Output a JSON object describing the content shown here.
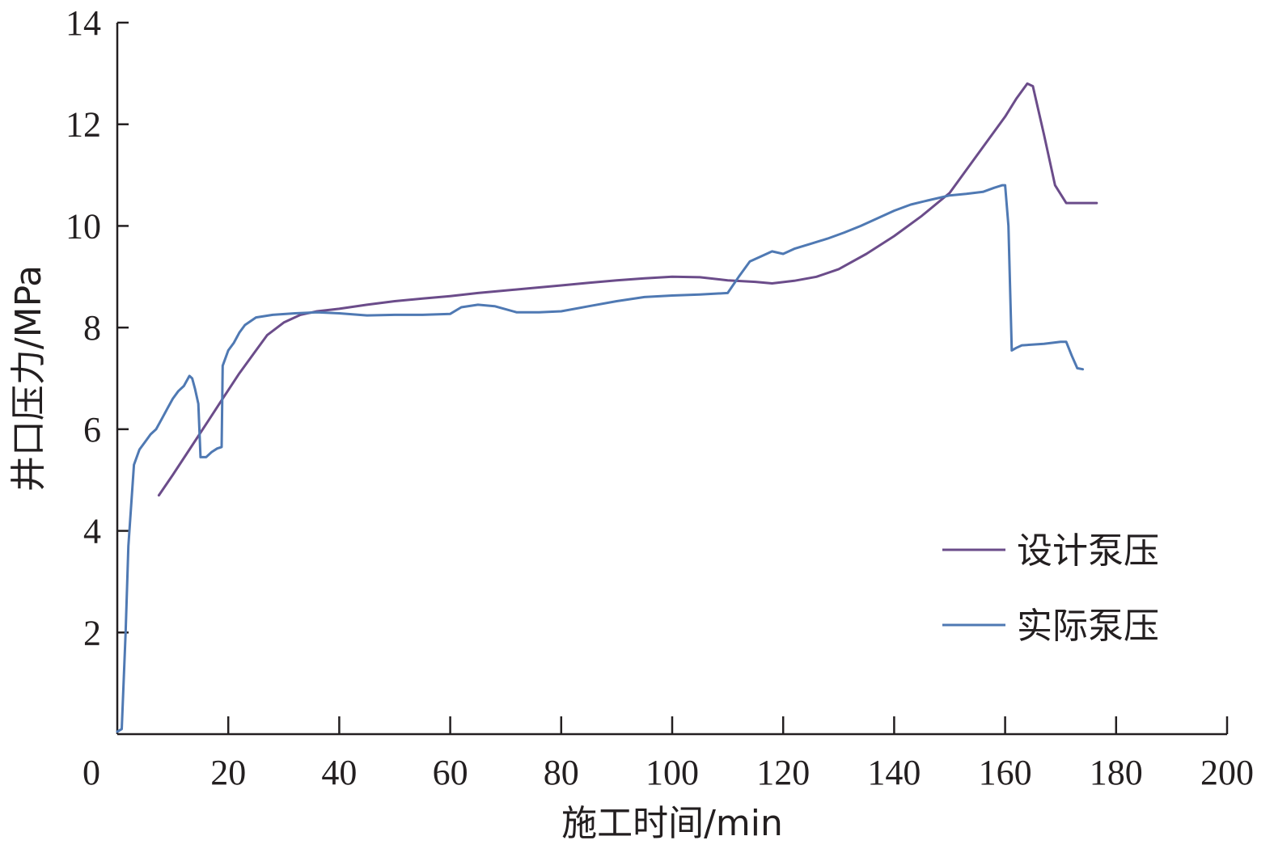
{
  "chart_data": {
    "type": "line",
    "title": "",
    "xlabel": "施工时间/min",
    "ylabel": "井口压力/MPa",
    "xlim": [
      0,
      200
    ],
    "ylim": [
      0,
      14
    ],
    "x_ticks": [
      0,
      20,
      40,
      60,
      80,
      100,
      120,
      140,
      160,
      180,
      200
    ],
    "y_ticks": [
      2,
      4,
      6,
      8,
      10,
      12,
      14
    ],
    "x_tick_labels": [
      "0",
      "20",
      "40",
      "60",
      "80",
      "100",
      "120",
      "140",
      "160",
      "180",
      "200"
    ],
    "y_tick_labels": [
      "2",
      "4",
      "6",
      "8",
      "10",
      "12",
      "14"
    ],
    "grid": false,
    "legend_position": "bottom-right",
    "series": [
      {
        "name": "设计泵压",
        "color": "#6b4c8a",
        "points": [
          [
            7.5,
            4.7
          ],
          [
            10,
            5.1
          ],
          [
            13,
            5.6
          ],
          [
            16,
            6.1
          ],
          [
            19,
            6.6
          ],
          [
            22,
            7.1
          ],
          [
            25,
            7.55
          ],
          [
            27,
            7.85
          ],
          [
            30,
            8.1
          ],
          [
            33,
            8.25
          ],
          [
            36,
            8.32
          ],
          [
            40,
            8.37
          ],
          [
            45,
            8.45
          ],
          [
            50,
            8.52
          ],
          [
            55,
            8.57
          ],
          [
            60,
            8.62
          ],
          [
            65,
            8.68
          ],
          [
            70,
            8.73
          ],
          [
            75,
            8.78
          ],
          [
            80,
            8.83
          ],
          [
            85,
            8.88
          ],
          [
            90,
            8.93
          ],
          [
            95,
            8.97
          ],
          [
            100,
            9.0
          ],
          [
            105,
            8.99
          ],
          [
            110,
            8.93
          ],
          [
            115,
            8.9
          ],
          [
            118,
            8.87
          ],
          [
            122,
            8.92
          ],
          [
            126,
            9.0
          ],
          [
            130,
            9.15
          ],
          [
            135,
            9.45
          ],
          [
            140,
            9.8
          ],
          [
            145,
            10.2
          ],
          [
            150,
            10.65
          ],
          [
            155,
            11.4
          ],
          [
            160,
            12.15
          ],
          [
            162,
            12.5
          ],
          [
            164,
            12.8
          ],
          [
            165,
            12.75
          ],
          [
            167,
            11.8
          ],
          [
            169,
            10.8
          ],
          [
            171,
            10.45
          ],
          [
            173,
            10.45
          ],
          [
            176.5,
            10.45
          ]
        ]
      },
      {
        "name": "实际泵压",
        "color": "#4f79b3",
        "points": [
          [
            0,
            0.05
          ],
          [
            0.8,
            0.1
          ],
          [
            1.5,
            2.0
          ],
          [
            2,
            3.7
          ],
          [
            3,
            5.3
          ],
          [
            4,
            5.6
          ],
          [
            5,
            5.75
          ],
          [
            6,
            5.9
          ],
          [
            7,
            6.0
          ],
          [
            8,
            6.2
          ],
          [
            9,
            6.4
          ],
          [
            10,
            6.6
          ],
          [
            11,
            6.75
          ],
          [
            12,
            6.85
          ],
          [
            13,
            7.05
          ],
          [
            13.5,
            7.0
          ],
          [
            14,
            6.8
          ],
          [
            14.6,
            6.5
          ],
          [
            15,
            5.45
          ],
          [
            16,
            5.45
          ],
          [
            17,
            5.55
          ],
          [
            18,
            5.62
          ],
          [
            18.8,
            5.65
          ],
          [
            19,
            7.25
          ],
          [
            20,
            7.55
          ],
          [
            21,
            7.7
          ],
          [
            22,
            7.9
          ],
          [
            23,
            8.05
          ],
          [
            25,
            8.2
          ],
          [
            28,
            8.25
          ],
          [
            32,
            8.28
          ],
          [
            36,
            8.3
          ],
          [
            40,
            8.28
          ],
          [
            45,
            8.24
          ],
          [
            50,
            8.25
          ],
          [
            55,
            8.25
          ],
          [
            60,
            8.27
          ],
          [
            62,
            8.4
          ],
          [
            65,
            8.45
          ],
          [
            68,
            8.42
          ],
          [
            72,
            8.3
          ],
          [
            76,
            8.3
          ],
          [
            80,
            8.32
          ],
          [
            85,
            8.42
          ],
          [
            90,
            8.52
          ],
          [
            95,
            8.6
          ],
          [
            100,
            8.63
          ],
          [
            105,
            8.65
          ],
          [
            110,
            8.68
          ],
          [
            112,
            9.0
          ],
          [
            114,
            9.3
          ],
          [
            116,
            9.4
          ],
          [
            118,
            9.5
          ],
          [
            120,
            9.45
          ],
          [
            122,
            9.55
          ],
          [
            125,
            9.65
          ],
          [
            128,
            9.75
          ],
          [
            131,
            9.87
          ],
          [
            134,
            10.0
          ],
          [
            137,
            10.15
          ],
          [
            140,
            10.3
          ],
          [
            143,
            10.42
          ],
          [
            146,
            10.5
          ],
          [
            150,
            10.6
          ],
          [
            153,
            10.63
          ],
          [
            156,
            10.67
          ],
          [
            158,
            10.75
          ],
          [
            159.5,
            10.8
          ],
          [
            160,
            10.8
          ],
          [
            160.6,
            10.0
          ],
          [
            161.2,
            7.55
          ],
          [
            162,
            7.6
          ],
          [
            163,
            7.65
          ],
          [
            167,
            7.68
          ],
          [
            170,
            7.72
          ],
          [
            171,
            7.72
          ],
          [
            172,
            7.45
          ],
          [
            173,
            7.2
          ],
          [
            174,
            7.18
          ]
        ]
      }
    ]
  }
}
